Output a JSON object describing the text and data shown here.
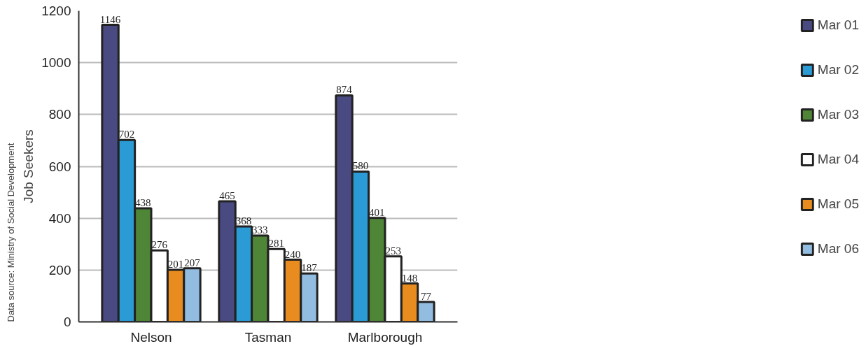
{
  "chart_data": {
    "type": "bar",
    "ylabel": "Job Seekers",
    "categories": [
      "Nelson",
      "Tasman",
      "Marlborough"
    ],
    "series": [
      {
        "name": "Mar 01",
        "color": "#4a4a82",
        "values": [
          1146,
          465,
          874
        ]
      },
      {
        "name": "Mar 02",
        "color": "#2a9bd4",
        "values": [
          702,
          368,
          580
        ]
      },
      {
        "name": "Mar 03",
        "color": "#4f8536",
        "values": [
          438,
          333,
          401
        ]
      },
      {
        "name": "Mar 04",
        "color": "#ffffff",
        "values": [
          276,
          281,
          253
        ]
      },
      {
        "name": "Mar 05",
        "color": "#e88c1f",
        "values": [
          201,
          240,
          148
        ]
      },
      {
        "name": "Mar 06",
        "color": "#92bde0",
        "values": [
          207,
          187,
          77
        ]
      }
    ],
    "ylim": [
      0,
      1200
    ],
    "yticks": [
      0,
      200,
      400,
      600,
      800,
      1000,
      1200
    ],
    "grid": "y",
    "legend": "right",
    "data_labels": true,
    "annotations": [
      "Data source: Ministry of Social Development"
    ]
  }
}
